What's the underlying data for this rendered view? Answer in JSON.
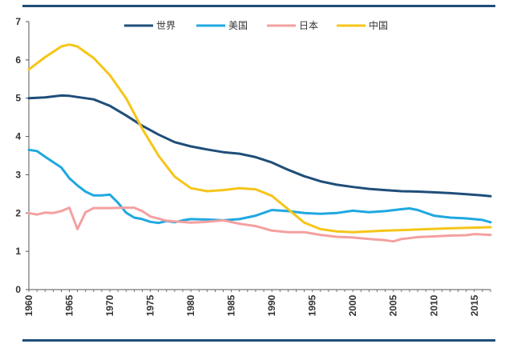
{
  "chart_data": {
    "type": "line",
    "title": "",
    "xlabel": "",
    "ylabel": "",
    "xlim": [
      1960,
      2017
    ],
    "ylim": [
      0,
      7
    ],
    "yticks": [
      0,
      1,
      2,
      3,
      4,
      5,
      6,
      7
    ],
    "xticks": [
      1960,
      1965,
      1970,
      1975,
      1980,
      1985,
      1990,
      1995,
      2000,
      2005,
      2010,
      2015
    ],
    "grid": false,
    "legend_position": "top-center",
    "series": [
      {
        "name": "世界",
        "color": "#1f4e79",
        "points": [
          [
            1960,
            5.0
          ],
          [
            1962,
            5.02
          ],
          [
            1964,
            5.07
          ],
          [
            1965,
            5.06
          ],
          [
            1966,
            5.03
          ],
          [
            1968,
            4.97
          ],
          [
            1970,
            4.8
          ],
          [
            1972,
            4.55
          ],
          [
            1974,
            4.28
          ],
          [
            1976,
            4.05
          ],
          [
            1978,
            3.85
          ],
          [
            1980,
            3.74
          ],
          [
            1982,
            3.66
          ],
          [
            1984,
            3.59
          ],
          [
            1986,
            3.55
          ],
          [
            1988,
            3.46
          ],
          [
            1990,
            3.32
          ],
          [
            1992,
            3.13
          ],
          [
            1994,
            2.96
          ],
          [
            1996,
            2.83
          ],
          [
            1998,
            2.74
          ],
          [
            2000,
            2.68
          ],
          [
            2002,
            2.63
          ],
          [
            2004,
            2.6
          ],
          [
            2006,
            2.57
          ],
          [
            2008,
            2.56
          ],
          [
            2010,
            2.54
          ],
          [
            2012,
            2.52
          ],
          [
            2014,
            2.49
          ],
          [
            2016,
            2.46
          ],
          [
            2017,
            2.44
          ]
        ]
      },
      {
        "name": "美国",
        "color": "#1fa8e0",
        "points": [
          [
            1960,
            3.65
          ],
          [
            1961,
            3.62
          ],
          [
            1962,
            3.47
          ],
          [
            1963,
            3.33
          ],
          [
            1964,
            3.19
          ],
          [
            1965,
            2.91
          ],
          [
            1966,
            2.72
          ],
          [
            1967,
            2.56
          ],
          [
            1968,
            2.46
          ],
          [
            1969,
            2.46
          ],
          [
            1970,
            2.48
          ],
          [
            1971,
            2.27
          ],
          [
            1972,
            2.01
          ],
          [
            1973,
            1.88
          ],
          [
            1974,
            1.84
          ],
          [
            1975,
            1.77
          ],
          [
            1976,
            1.74
          ],
          [
            1977,
            1.79
          ],
          [
            1978,
            1.76
          ],
          [
            1979,
            1.81
          ],
          [
            1980,
            1.84
          ],
          [
            1982,
            1.83
          ],
          [
            1984,
            1.81
          ],
          [
            1986,
            1.84
          ],
          [
            1988,
            1.93
          ],
          [
            1990,
            2.08
          ],
          [
            1992,
            2.05
          ],
          [
            1994,
            2.0
          ],
          [
            1996,
            1.98
          ],
          [
            1998,
            2.0
          ],
          [
            2000,
            2.06
          ],
          [
            2002,
            2.02
          ],
          [
            2004,
            2.05
          ],
          [
            2006,
            2.1
          ],
          [
            2007,
            2.12
          ],
          [
            2008,
            2.08
          ],
          [
            2010,
            1.93
          ],
          [
            2012,
            1.88
          ],
          [
            2014,
            1.86
          ],
          [
            2016,
            1.82
          ],
          [
            2017,
            1.76
          ]
        ]
      },
      {
        "name": "日本",
        "color": "#f4a0a0",
        "points": [
          [
            1960,
            2.0
          ],
          [
            1961,
            1.96
          ],
          [
            1962,
            2.01
          ],
          [
            1963,
            2.0
          ],
          [
            1964,
            2.05
          ],
          [
            1965,
            2.14
          ],
          [
            1966,
            1.58
          ],
          [
            1967,
            2.02
          ],
          [
            1968,
            2.13
          ],
          [
            1970,
            2.13
          ],
          [
            1972,
            2.14
          ],
          [
            1973,
            2.14
          ],
          [
            1974,
            2.05
          ],
          [
            1975,
            1.91
          ],
          [
            1977,
            1.8
          ],
          [
            1980,
            1.75
          ],
          [
            1982,
            1.77
          ],
          [
            1984,
            1.81
          ],
          [
            1986,
            1.72
          ],
          [
            1988,
            1.66
          ],
          [
            1990,
            1.54
          ],
          [
            1992,
            1.5
          ],
          [
            1994,
            1.5
          ],
          [
            1996,
            1.43
          ],
          [
            1998,
            1.38
          ],
          [
            2000,
            1.36
          ],
          [
            2002,
            1.32
          ],
          [
            2004,
            1.29
          ],
          [
            2005,
            1.26
          ],
          [
            2006,
            1.32
          ],
          [
            2008,
            1.37
          ],
          [
            2010,
            1.39
          ],
          [
            2012,
            1.41
          ],
          [
            2014,
            1.42
          ],
          [
            2015,
            1.45
          ],
          [
            2016,
            1.44
          ],
          [
            2017,
            1.43
          ]
        ]
      },
      {
        "name": "中国",
        "color": "#f5c518",
        "points": [
          [
            1960,
            5.75
          ],
          [
            1962,
            6.07
          ],
          [
            1964,
            6.35
          ],
          [
            1965,
            6.4
          ],
          [
            1966,
            6.35
          ],
          [
            1968,
            6.05
          ],
          [
            1970,
            5.6
          ],
          [
            1972,
            5.0
          ],
          [
            1974,
            4.2
          ],
          [
            1976,
            3.5
          ],
          [
            1978,
            2.95
          ],
          [
            1980,
            2.65
          ],
          [
            1982,
            2.57
          ],
          [
            1984,
            2.6
          ],
          [
            1986,
            2.65
          ],
          [
            1988,
            2.62
          ],
          [
            1990,
            2.45
          ],
          [
            1992,
            2.1
          ],
          [
            1994,
            1.75
          ],
          [
            1996,
            1.58
          ],
          [
            1998,
            1.52
          ],
          [
            2000,
            1.5
          ],
          [
            2004,
            1.54
          ],
          [
            2008,
            1.57
          ],
          [
            2012,
            1.6
          ],
          [
            2017,
            1.63
          ]
        ]
      }
    ]
  }
}
